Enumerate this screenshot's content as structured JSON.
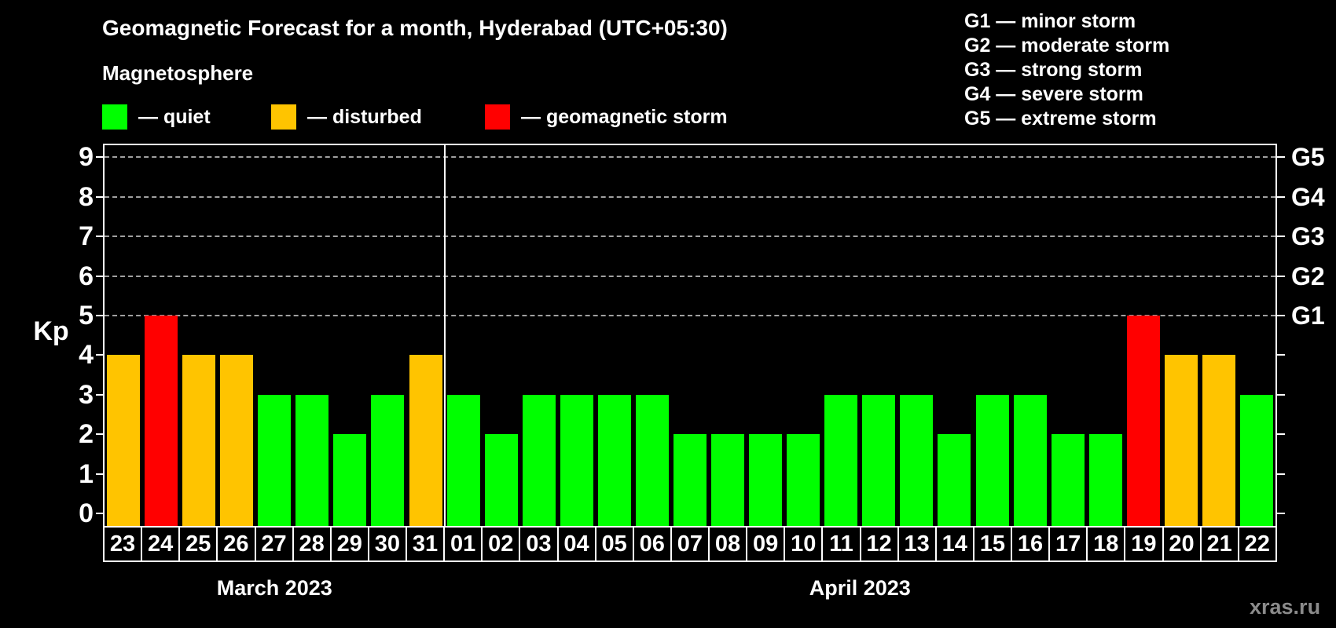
{
  "header": {
    "title": "Geomagnetic Forecast for a month, Hyderabad (UTC+05:30)",
    "subtitle": "Magnetosphere"
  },
  "legend": {
    "items": [
      {
        "name": "quiet",
        "label": "— quiet",
        "color": "#00ff00"
      },
      {
        "name": "disturbed",
        "label": "— disturbed",
        "color": "#ffc400"
      },
      {
        "name": "storm",
        "label": "— geomagnetic storm",
        "color": "#ff0000"
      }
    ]
  },
  "g_legend": {
    "items": [
      "G1 — minor storm",
      "G2 — moderate storm",
      "G3 — strong storm",
      "G4 — severe storm",
      "G5 — extreme storm"
    ]
  },
  "watermark": "xras.ru",
  "chart_data": {
    "type": "bar",
    "title": "Geomagnetic Forecast for a month, Hyderabad (UTC+05:30)",
    "ylabel": "Kp",
    "ylim": [
      0,
      9
    ],
    "y_ticks": [
      0,
      1,
      2,
      3,
      4,
      5,
      6,
      7,
      8,
      9
    ],
    "gridlines_at": [
      5,
      6,
      7,
      8,
      9
    ],
    "grid_style": "dashed",
    "right_axis_labels": [
      {
        "value": 5,
        "label": "G1"
      },
      {
        "value": 6,
        "label": "G2"
      },
      {
        "value": 7,
        "label": "G3"
      },
      {
        "value": 8,
        "label": "G4"
      },
      {
        "value": 9,
        "label": "G5"
      }
    ],
    "status_colors": {
      "quiet": "#00ff00",
      "disturbed": "#ffc400",
      "storm": "#ff0000"
    },
    "months": [
      {
        "label": "March 2023",
        "days": [
          {
            "day": "23",
            "kp": 4,
            "status": "disturbed"
          },
          {
            "day": "24",
            "kp": 5,
            "status": "storm"
          },
          {
            "day": "25",
            "kp": 4,
            "status": "disturbed"
          },
          {
            "day": "26",
            "kp": 4,
            "status": "disturbed"
          },
          {
            "day": "27",
            "kp": 3,
            "status": "quiet"
          },
          {
            "day": "28",
            "kp": 3,
            "status": "quiet"
          },
          {
            "day": "29",
            "kp": 2,
            "status": "quiet"
          },
          {
            "day": "30",
            "kp": 3,
            "status": "quiet"
          },
          {
            "day": "31",
            "kp": 4,
            "status": "disturbed"
          }
        ]
      },
      {
        "label": "April 2023",
        "days": [
          {
            "day": "01",
            "kp": 3,
            "status": "quiet"
          },
          {
            "day": "02",
            "kp": 2,
            "status": "quiet"
          },
          {
            "day": "03",
            "kp": 3,
            "status": "quiet"
          },
          {
            "day": "04",
            "kp": 3,
            "status": "quiet"
          },
          {
            "day": "05",
            "kp": 3,
            "status": "quiet"
          },
          {
            "day": "06",
            "kp": 3,
            "status": "quiet"
          },
          {
            "day": "07",
            "kp": 2,
            "status": "quiet"
          },
          {
            "day": "08",
            "kp": 2,
            "status": "quiet"
          },
          {
            "day": "09",
            "kp": 2,
            "status": "quiet"
          },
          {
            "day": "10",
            "kp": 2,
            "status": "quiet"
          },
          {
            "day": "11",
            "kp": 3,
            "status": "quiet"
          },
          {
            "day": "12",
            "kp": 3,
            "status": "quiet"
          },
          {
            "day": "13",
            "kp": 3,
            "status": "quiet"
          },
          {
            "day": "14",
            "kp": 2,
            "status": "quiet"
          },
          {
            "day": "15",
            "kp": 3,
            "status": "quiet"
          },
          {
            "day": "16",
            "kp": 3,
            "status": "quiet"
          },
          {
            "day": "17",
            "kp": 2,
            "status": "quiet"
          },
          {
            "day": "18",
            "kp": 2,
            "status": "quiet"
          },
          {
            "day": "19",
            "kp": 5,
            "status": "storm"
          },
          {
            "day": "20",
            "kp": 4,
            "status": "disturbed"
          },
          {
            "day": "21",
            "kp": 4,
            "status": "disturbed"
          },
          {
            "day": "22",
            "kp": 3,
            "status": "quiet"
          }
        ]
      }
    ]
  }
}
